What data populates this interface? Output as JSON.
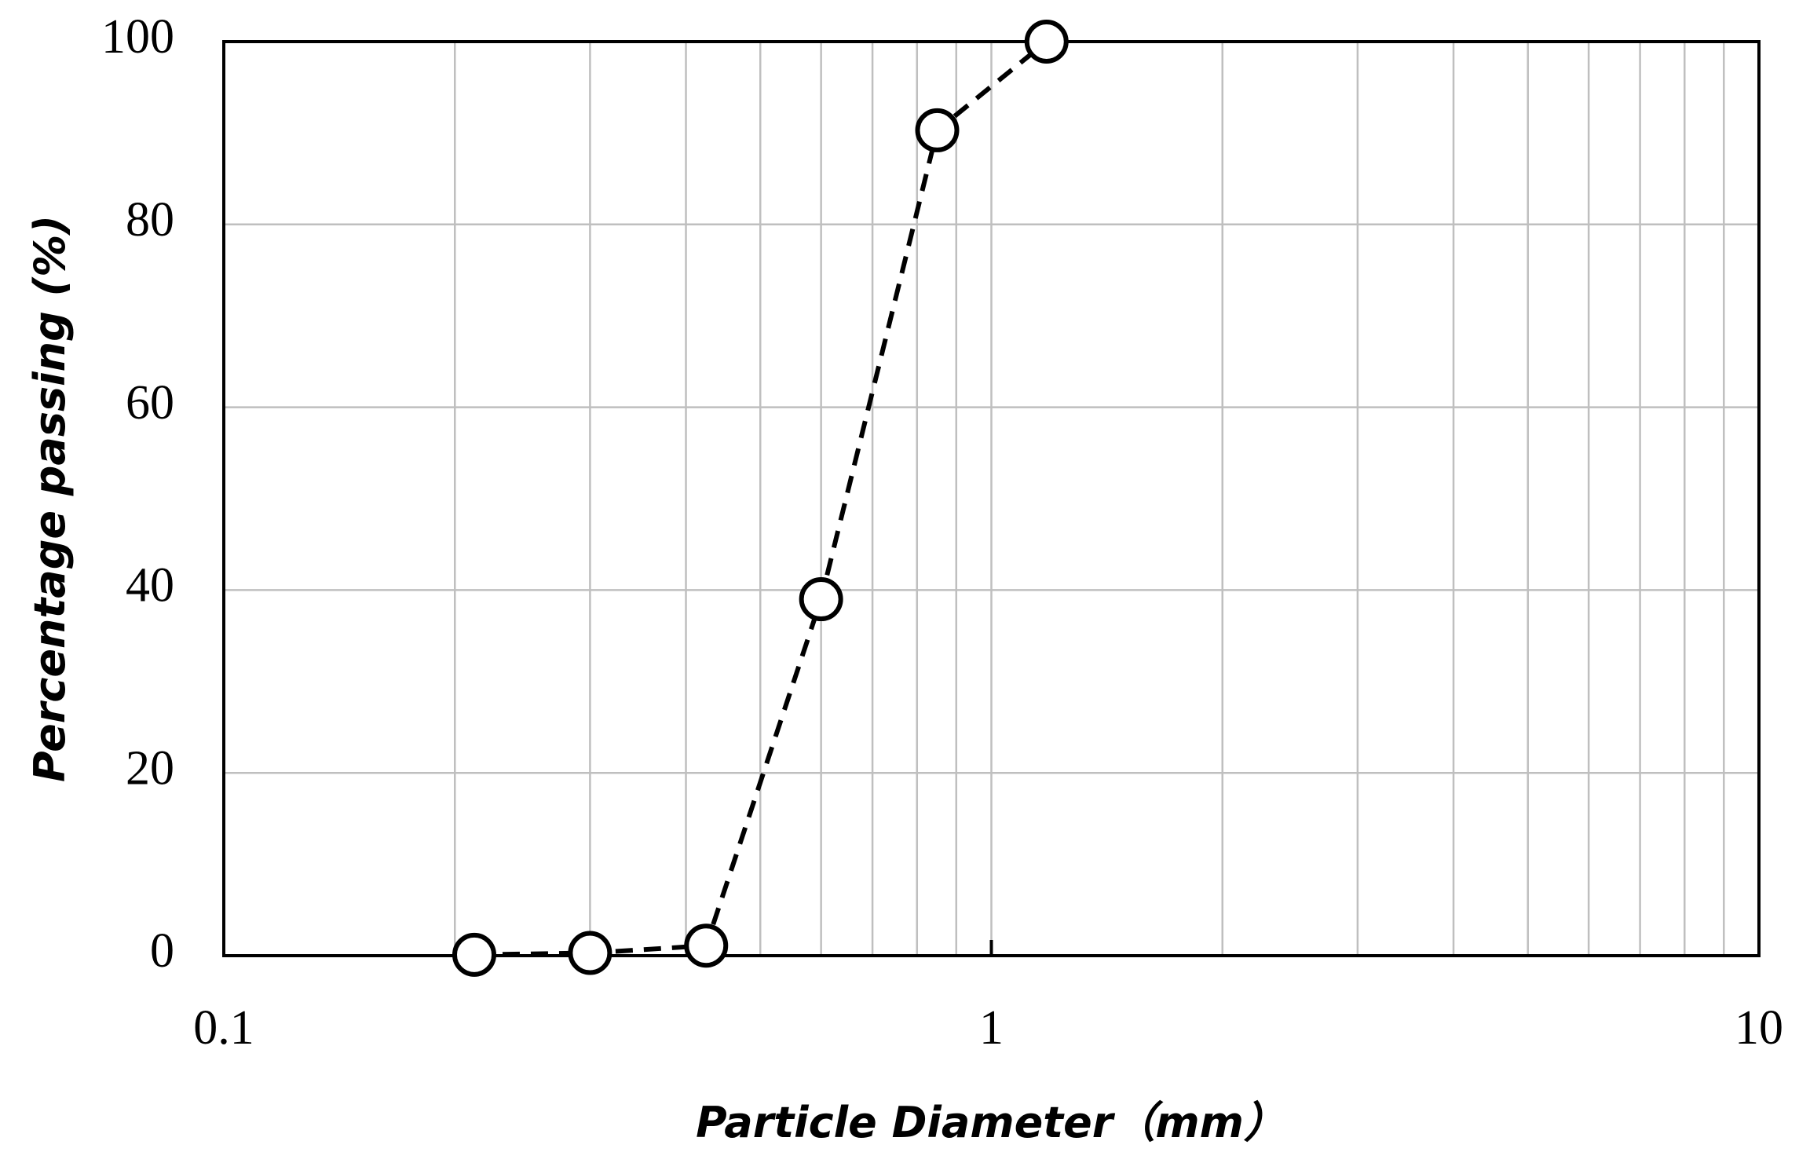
{
  "chart_data": {
    "type": "line",
    "x_label": "Particle Diameter（mm）",
    "y_label": "Percentage passing (%)",
    "x_scale": "log",
    "xlim": [
      0.1,
      10
    ],
    "xticks": [
      0.1,
      1,
      10
    ],
    "ylim": [
      0,
      100
    ],
    "yticks": [
      0,
      20,
      40,
      60,
      80,
      100
    ],
    "grid": true,
    "series": [
      {
        "name": "Percentage passing",
        "color": "#000000",
        "line_style": "dashed",
        "marker": "open-circle",
        "x": [
          0.212,
          0.3,
          0.425,
          0.6,
          0.85,
          1.18
        ],
        "values": [
          0.1,
          0.3,
          1.1,
          39,
          90.3,
          100
        ]
      }
    ]
  }
}
